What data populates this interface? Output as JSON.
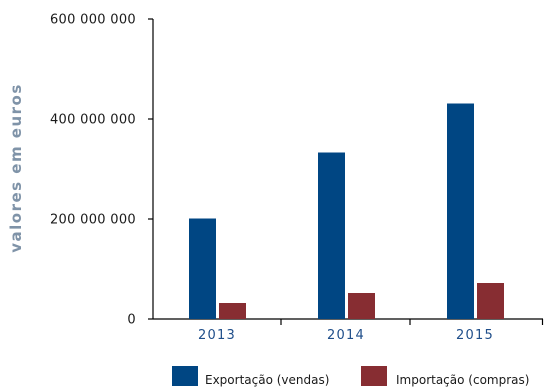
{
  "chart_data": {
    "type": "bar",
    "ylabel": "valores em euros",
    "categories": [
      "2013",
      "2014",
      "2015"
    ],
    "series": [
      {
        "name": "Exportação (vendas)",
        "color": "#004683",
        "values": [
          201000000,
          333000000,
          431000000
        ]
      },
      {
        "name": "Importação (compras)",
        "color": "#872d32",
        "values": [
          32000000,
          52000000,
          72000000
        ]
      }
    ],
    "ylim": [
      0,
      600000000
    ],
    "yticks": [
      0,
      200000000,
      400000000,
      600000000
    ],
    "ytick_labels": [
      "0",
      "200 000 000",
      "400 000 000",
      "600 000 000"
    ],
    "grid": false,
    "legend_position": "bottom-right"
  }
}
